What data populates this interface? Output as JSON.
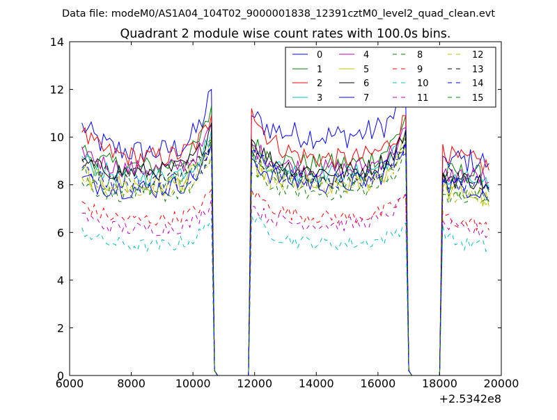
{
  "header": {
    "data_file_text": "Data file: modeM0/AS1A04_104T02_9000001838_12391cztM0_level2_quad_clean.evt"
  },
  "chart_data": {
    "type": "line",
    "title": "Quadrant 2 module wise count rates with 100.0s bins.",
    "xlabel": "",
    "ylabel": "",
    "x_offset_text": "+2.5342e8",
    "xlim": [
      6000,
      20000
    ],
    "ylim": [
      0,
      14
    ],
    "x_ticks": [
      6000,
      8000,
      10000,
      12000,
      14000,
      16000,
      18000,
      20000
    ],
    "x_tick_labels": [
      "6000",
      "8000",
      "10000",
      "12000",
      "14000",
      "16000",
      "18000",
      "20000"
    ],
    "y_ticks": [
      0,
      2,
      4,
      6,
      8,
      10,
      12,
      14
    ],
    "y_tick_labels": [
      "0",
      "2",
      "4",
      "6",
      "8",
      "10",
      "12",
      "14"
    ],
    "grid": false,
    "legend_position": "top-right",
    "legend_columns": 4,
    "bin_size_s": 100,
    "segments": [
      {
        "start": 6400,
        "end": 10600
      },
      {
        "start": 11900,
        "end": 16900
      },
      {
        "start": 18100,
        "end": 19600
      }
    ],
    "series": [
      {
        "name": "0",
        "color": "#0000ff",
        "dash": "solid",
        "segment_levels": [
          9.3,
          10.0,
          9.0
        ],
        "segment_start_values": [
          10.6,
          10.9,
          9.2
        ],
        "segment_end_values": [
          12.0,
          11.8,
          8.9
        ],
        "noise": 0.55
      },
      {
        "name": "1",
        "color": "#008000",
        "dash": "solid",
        "segment_levels": [
          8.7,
          8.8,
          8.5
        ],
        "segment_start_values": [
          9.5,
          9.8,
          8.5
        ],
        "segment_end_values": [
          11.3,
          10.9,
          7.7
        ],
        "noise": 0.45
      },
      {
        "name": "2",
        "color": "#ff0000",
        "dash": "solid",
        "segment_levels": [
          9.1,
          9.0,
          9.0
        ],
        "segment_start_values": [
          10.2,
          11.2,
          9.7
        ],
        "segment_end_values": [
          10.9,
          10.9,
          8.6
        ],
        "noise": 0.45
      },
      {
        "name": "3",
        "color": "#00bfbf",
        "dash": "solid",
        "segment_levels": [
          8.3,
          8.4,
          8.2
        ],
        "segment_start_values": [
          9.2,
          9.5,
          8.1
        ],
        "segment_end_values": [
          10.3,
          10.2,
          7.8
        ],
        "noise": 0.4
      },
      {
        "name": "4",
        "color": "#bf00bf",
        "dash": "solid",
        "segment_levels": [
          8.6,
          8.6,
          8.4
        ],
        "segment_start_values": [
          9.6,
          9.7,
          8.4
        ],
        "segment_end_values": [
          10.5,
          10.4,
          8.1
        ],
        "noise": 0.4
      },
      {
        "name": "5",
        "color": "#bfbf00",
        "dash": "solid",
        "segment_levels": [
          7.9,
          7.9,
          7.6
        ],
        "segment_start_values": [
          8.6,
          9.0,
          7.9
        ],
        "segment_end_values": [
          9.9,
          9.9,
          7.1
        ],
        "noise": 0.45
      },
      {
        "name": "6",
        "color": "#000000",
        "dash": "solid",
        "segment_levels": [
          8.5,
          8.5,
          8.2
        ],
        "segment_start_values": [
          9.0,
          9.9,
          8.5
        ],
        "segment_end_values": [
          10.6,
          10.3,
          7.8
        ],
        "noise": 0.4
      },
      {
        "name": "7",
        "color": "#0000ff",
        "dash": "solid",
        "segment_levels": [
          7.8,
          8.0,
          7.9
        ],
        "segment_start_values": [
          8.3,
          9.1,
          8.1
        ],
        "segment_end_values": [
          9.7,
          9.8,
          7.3
        ],
        "noise": 0.45
      },
      {
        "name": "8",
        "color": "#008000",
        "dash": "dashed",
        "segment_levels": [
          7.5,
          7.6,
          7.4
        ],
        "segment_start_values": [
          8.1,
          8.5,
          7.6
        ],
        "segment_end_values": [
          9.2,
          9.3,
          7.3
        ],
        "noise": 0.3
      },
      {
        "name": "9",
        "color": "#ff0000",
        "dash": "dashed",
        "segment_levels": [
          6.5,
          6.6,
          6.4
        ],
        "segment_start_values": [
          7.3,
          7.8,
          6.9
        ],
        "segment_end_values": [
          7.8,
          7.6,
          6.1
        ],
        "noise": 0.3
      },
      {
        "name": "10",
        "color": "#00bfbf",
        "dash": "dashed",
        "segment_levels": [
          5.4,
          5.5,
          5.5
        ],
        "segment_start_values": [
          6.2,
          6.7,
          6.3
        ],
        "segment_end_values": [
          6.6,
          6.4,
          5.3
        ],
        "noise": 0.3
      },
      {
        "name": "11",
        "color": "#bf00bf",
        "dash": "dashed",
        "segment_levels": [
          6.1,
          6.3,
          6.1
        ],
        "segment_start_values": [
          6.8,
          7.1,
          6.5
        ],
        "segment_end_values": [
          7.4,
          7.6,
          5.9
        ],
        "noise": 0.3
      },
      {
        "name": "12",
        "color": "#bfbf00",
        "dash": "dashed",
        "segment_levels": [
          7.8,
          7.9,
          7.6
        ],
        "segment_start_values": [
          8.3,
          8.7,
          7.7
        ],
        "segment_end_values": [
          9.3,
          9.5,
          7.4
        ],
        "noise": 0.4
      },
      {
        "name": "13",
        "color": "#000000",
        "dash": "dashed",
        "segment_levels": [
          8.3,
          8.2,
          8.2
        ],
        "segment_start_values": [
          9.1,
          9.5,
          8.5
        ],
        "segment_end_values": [
          10.0,
          10.0,
          7.9
        ],
        "noise": 0.4
      },
      {
        "name": "14",
        "color": "#0000ff",
        "dash": "dashed",
        "segment_levels": [
          8.0,
          8.1,
          8.0
        ],
        "segment_start_values": [
          8.7,
          9.4,
          8.3
        ],
        "segment_end_values": [
          9.6,
          9.8,
          7.8
        ],
        "noise": 0.4
      },
      {
        "name": "15",
        "color": "#008000",
        "dash": "dashed",
        "segment_levels": [
          8.0,
          8.1,
          7.8
        ],
        "segment_start_values": [
          8.6,
          9.3,
          8.0
        ],
        "segment_end_values": [
          9.9,
          9.8,
          7.6
        ],
        "noise": 0.4
      }
    ]
  }
}
